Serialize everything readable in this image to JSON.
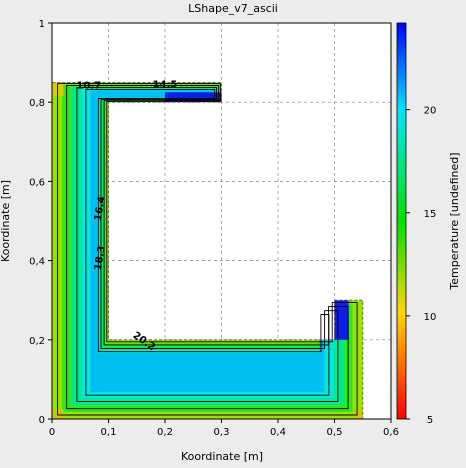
{
  "chart_data": {
    "type": "contour",
    "title": "LShape_v7_ascii",
    "xlabel": "Koordinate [m]",
    "ylabel": "Koordinate [m]",
    "xlim": [
      0,
      0.6
    ],
    "ylim": [
      0,
      1
    ],
    "x_ticks": [
      "0",
      "0,1",
      "0,2",
      "0,3",
      "0,4",
      "0,5",
      "0,6"
    ],
    "y_ticks": [
      "0",
      "0,2",
      "0,4",
      "0,6",
      "0,8",
      "1"
    ],
    "colorbar": {
      "label": "Temperature [undefined]",
      "range": [
        5,
        24.2
      ],
      "ticks": [
        "5",
        "10",
        "15",
        "20"
      ],
      "colormap": [
        "#ff0000",
        "#ffd700",
        "#00e000",
        "#00e5ff",
        "#0000ff"
      ]
    },
    "domain_outline": [
      [
        0,
        0
      ],
      [
        0.55,
        0
      ],
      [
        0.55,
        0.3
      ],
      [
        0.5,
        0.3
      ],
      [
        0.5,
        0.2
      ],
      [
        0.1,
        0.2
      ],
      [
        0.1,
        0.8
      ],
      [
        0.3,
        0.8
      ],
      [
        0.3,
        0.85
      ],
      [
        0,
        0.85
      ]
    ],
    "contour_labels": [
      {
        "value": "10.7",
        "x": 0.065,
        "y": 0.835
      },
      {
        "value": "14.5",
        "x": 0.2,
        "y": 0.837
      },
      {
        "value": "16.4",
        "x": 0.09,
        "y": 0.53
      },
      {
        "value": "18.3",
        "x": 0.09,
        "y": 0.405
      },
      {
        "value": "20.2",
        "x": 0.16,
        "y": 0.19
      }
    ],
    "grid": true
  }
}
